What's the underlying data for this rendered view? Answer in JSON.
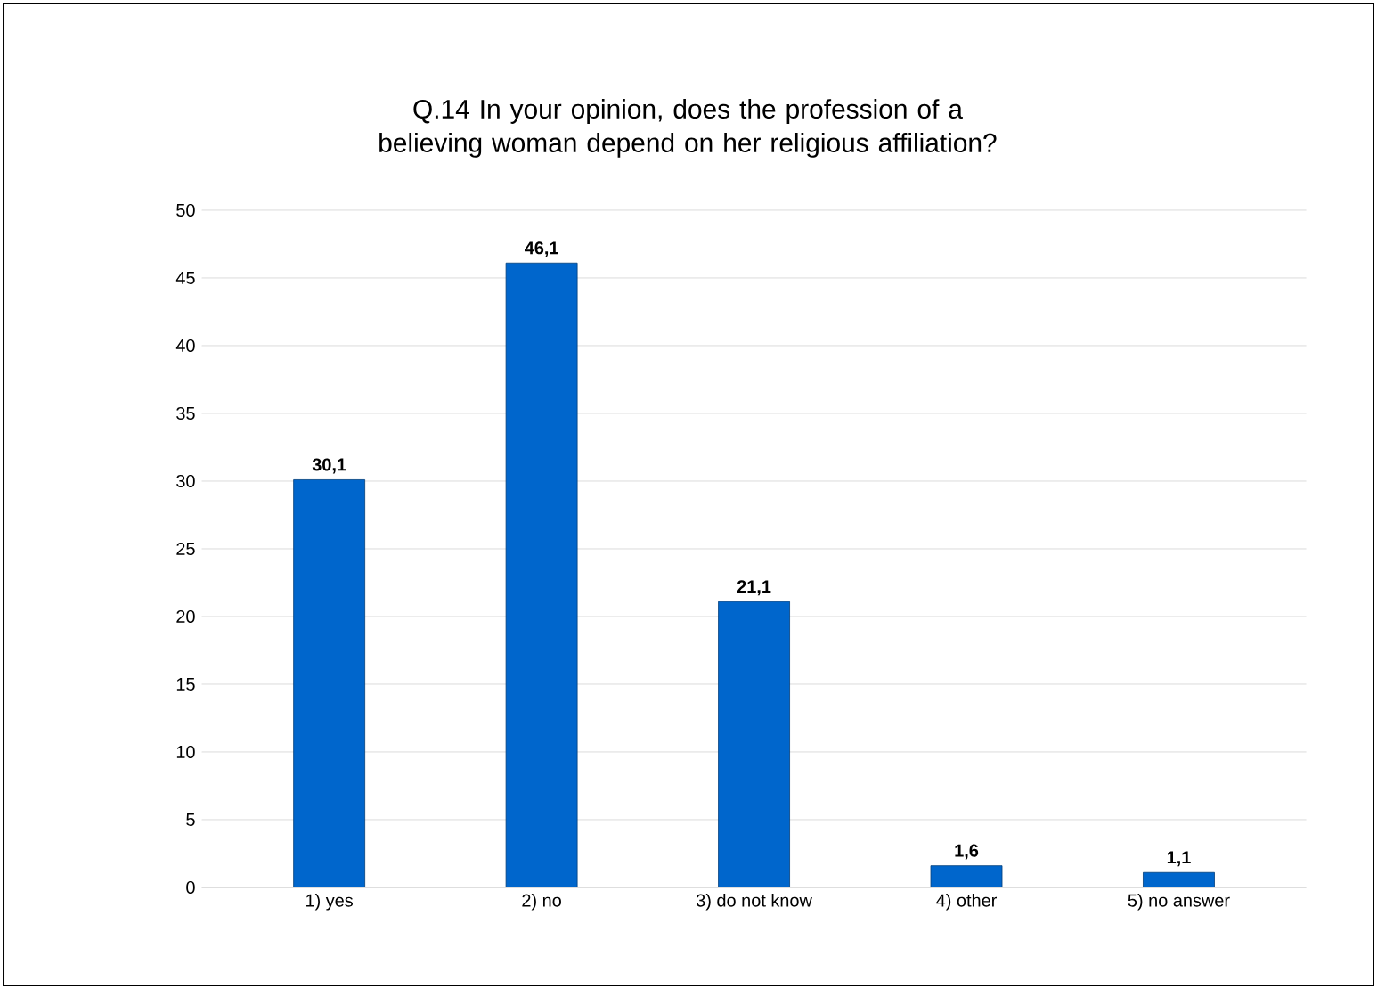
{
  "chart_data": {
    "type": "bar",
    "title": "Q.14 In your opinion, does the profession of a believing woman depend on her religious affiliation?",
    "categories": [
      "1) yes",
      "2) no",
      "3) do not know",
      "4) other",
      "5) no answer"
    ],
    "values": [
      30.1,
      46.1,
      21.1,
      1.6,
      1.1
    ],
    "value_labels": [
      "30,1",
      "46,1",
      "21,1",
      "1,6",
      "1,1"
    ],
    "color": "#0066cc",
    "ylim": [
      0,
      50
    ],
    "yticks": [
      0,
      5,
      10,
      15,
      20,
      25,
      30,
      35,
      40,
      45,
      50
    ],
    "grid": "y"
  }
}
